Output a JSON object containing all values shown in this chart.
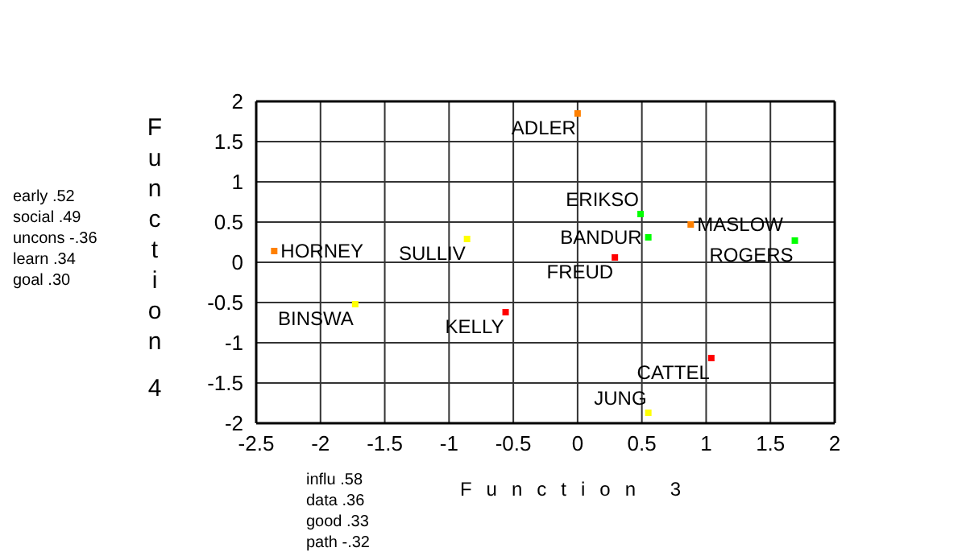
{
  "chart_data": {
    "type": "scatter",
    "xlabel": "Function 3",
    "ylabel": "Function 4",
    "x": [
      -2.36,
      -0.86,
      -1.73,
      -0.56,
      0.0,
      0.49,
      0.88,
      0.55,
      0.29,
      1.69,
      1.04,
      0.55
    ],
    "values": [
      0.14,
      0.29,
      -0.52,
      -0.62,
      1.85,
      0.6,
      0.47,
      0.31,
      0.06,
      0.27,
      -1.19,
      -1.87
    ],
    "colors": [
      "#ff8000",
      "#ffff00",
      "#ffff00",
      "#ff0000",
      "#ff8000",
      "#00ff00",
      "#ff8000",
      "#00ff00",
      "#ff0000",
      "#00ff00",
      "#ff0000",
      "#ffff00"
    ],
    "xlim": [
      -2.5,
      2
    ],
    "ylim": [
      -2,
      2
    ],
    "xticks": [
      -2.5,
      -2,
      -1.5,
      -1,
      -0.5,
      0,
      0.5,
      1,
      1.5,
      2
    ],
    "yticks": [
      -2,
      -1.5,
      -1,
      -0.5,
      0,
      0.5,
      1,
      1.5,
      2
    ],
    "grid": true,
    "marker": "square",
    "annotations": [
      {
        "text": "HORNEY",
        "x": -2.36,
        "y": 0.14
      },
      {
        "text": "SULLIV",
        "x": -0.86,
        "y": 0.29
      },
      {
        "text": "BINSWA",
        "x": -1.73,
        "y": -0.52
      },
      {
        "text": "KELLY",
        "x": -0.56,
        "y": -0.62
      },
      {
        "text": "ADLER",
        "x": 0.0,
        "y": 1.85
      },
      {
        "text": "ERIKSO",
        "x": 0.49,
        "y": 0.6
      },
      {
        "text": "MASLOW",
        "x": 0.88,
        "y": 0.47
      },
      {
        "text": "BANDUR",
        "x": 0.55,
        "y": 0.31
      },
      {
        "text": "FREUD",
        "x": 0.29,
        "y": 0.06
      },
      {
        "text": "ROGERS",
        "x": 1.69,
        "y": 0.27
      },
      {
        "text": "CATTEL",
        "x": 1.04,
        "y": -1.19
      },
      {
        "text": "JUNG",
        "x": 0.55,
        "y": -1.87
      },
      "early .52\nsocial .49\nuncons -.36\nlearn .34\ngoal .30",
      "influ .58\ndata .36\ngood .33\npath -.32"
    ]
  }
}
